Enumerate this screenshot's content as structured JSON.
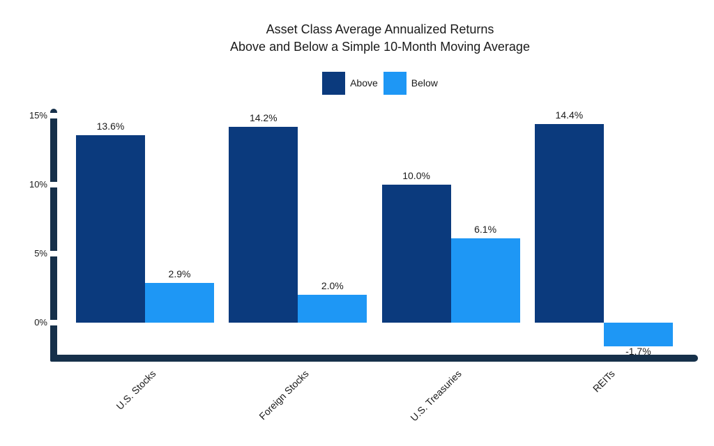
{
  "title": {
    "line1": "Asset Class Average Annualized Returns",
    "line2": "Above and Below a Simple 10-Month Moving Average"
  },
  "legend": {
    "items": [
      {
        "label": "Above",
        "color": "#0B3A7D"
      },
      {
        "label": "Below",
        "color": "#1E97F5"
      }
    ]
  },
  "chart_data": {
    "type": "bar",
    "title": "Asset Class Average Annualized Returns Above and Below a Simple 10-Month Moving Average",
    "categories": [
      "U.S. Stocks",
      "Foreign Stocks",
      "U.S. Treasuries",
      "REITs"
    ],
    "series": [
      {
        "name": "Above",
        "color": "#0B3A7D",
        "values": [
          13.6,
          14.2,
          10.0,
          14.4
        ],
        "labels": [
          "13.6%",
          "14.2%",
          "10.0%",
          "14.4%"
        ]
      },
      {
        "name": "Below",
        "color": "#1E97F5",
        "values": [
          2.9,
          2.0,
          6.1,
          -1.7
        ],
        "labels": [
          "2.9%",
          "2.0%",
          "6.1%",
          "-1.7%"
        ]
      }
    ],
    "xlabel": "",
    "ylabel": "",
    "yticks": [
      {
        "value": 15,
        "label": "15%"
      },
      {
        "value": 10,
        "label": "10%"
      },
      {
        "value": 5,
        "label": "5%"
      },
      {
        "value": 0,
        "label": "0%"
      }
    ],
    "ylim": [
      -2.5,
      15.5
    ],
    "grid": false,
    "legend_position": "top-center"
  },
  "colors": {
    "background": "#FFFFFF",
    "text": "#1A1A1A",
    "axis": "#16304A"
  }
}
